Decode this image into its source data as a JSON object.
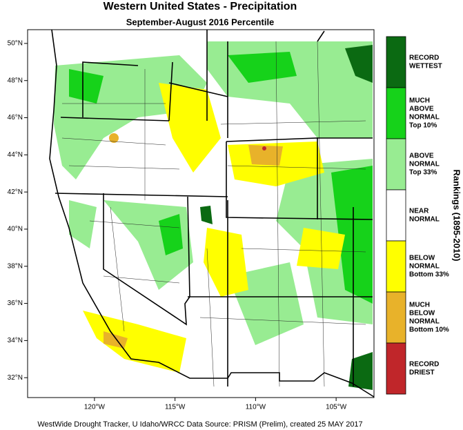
{
  "map": {
    "title": "Western United States - Precipitation",
    "subtitle": "September-August 2016 Percentile",
    "lonlim": [
      -124.15,
      -102.65
    ],
    "latlim": [
      30.93,
      50.74
    ],
    "lat_ticks": [
      {
        "value": 50,
        "label": "50°N"
      },
      {
        "value": 48,
        "label": "48°N"
      },
      {
        "value": 46,
        "label": "46°N"
      },
      {
        "value": 44,
        "label": "44°N"
      },
      {
        "value": 42,
        "label": "42°N"
      },
      {
        "value": 40,
        "label": "40°N"
      },
      {
        "value": 38,
        "label": "38°N"
      },
      {
        "value": 36,
        "label": "36°N"
      },
      {
        "value": 34,
        "label": "34°N"
      },
      {
        "value": 32,
        "label": "32°N"
      }
    ],
    "lon_ticks": [
      {
        "value": -120,
        "label": "120°W"
      },
      {
        "value": -115,
        "label": "115°W"
      },
      {
        "value": -110,
        "label": "110°W"
      },
      {
        "value": -105,
        "label": "105°W"
      }
    ],
    "legend": {
      "title": "Rankings (1895-2010)",
      "items": [
        {
          "lines": [
            "RECORD",
            "WETTEST"
          ],
          "color": "#0b6a12"
        },
        {
          "lines": [
            "MUCH",
            "ABOVE",
            "NORMAL",
            "Top 10%"
          ],
          "color": "#16d21a"
        },
        {
          "lines": [
            "ABOVE",
            "NORMAL",
            "Top 33%"
          ],
          "color": "#98ec92"
        },
        {
          "lines": [
            "NEAR",
            "NORMAL"
          ],
          "color": "#ffffff"
        },
        {
          "lines": [
            "BELOW",
            "NORMAL",
            "Bottom 33%"
          ],
          "color": "#ffff00"
        },
        {
          "lines": [
            "MUCH",
            "BELOW",
            "NORMAL",
            "Bottom 10%"
          ],
          "color": "#e8b22a"
        },
        {
          "lines": [
            "RECORD",
            "DRIEST"
          ],
          "color": "#c0262a"
        }
      ]
    },
    "footer": "WestWide Drought Tracker, U Idaho/WRCC Data Source: PRISM (Prelim), created 25 MAY 2017"
  }
}
